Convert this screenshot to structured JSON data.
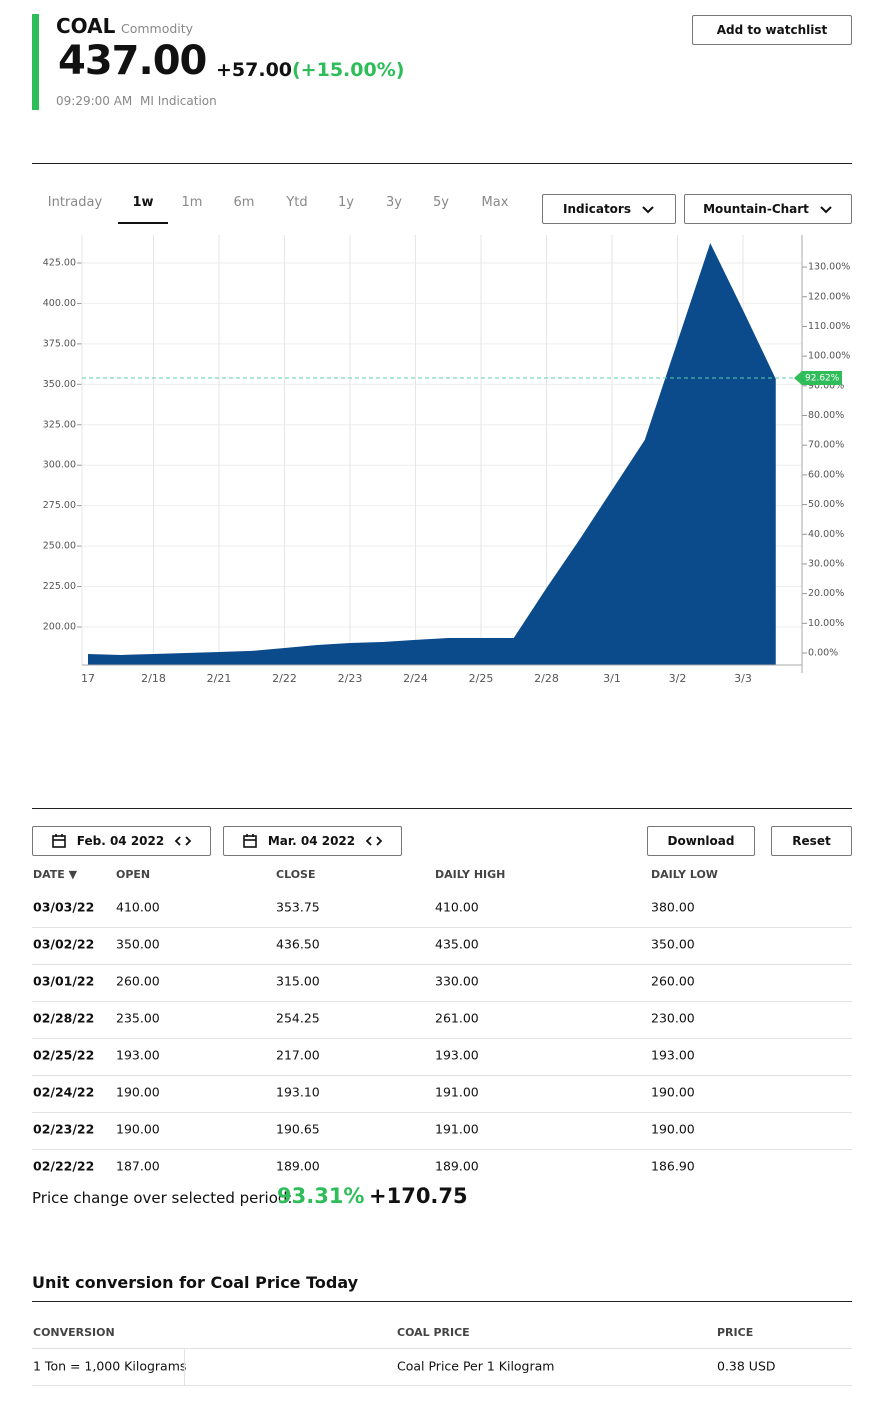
{
  "header": {
    "symbol": "COAL",
    "asset_class": "Commodity",
    "price": "437.00",
    "change": "+57.00",
    "change_percent": "(+15.00%)",
    "time": "09:29:00 AM",
    "source": "MI Indication",
    "watchlist_button": "Add to watchlist"
  },
  "tabs": {
    "items": [
      "Intraday",
      "1w",
      "1m",
      "6m",
      "Ytd",
      "1y",
      "3y",
      "5y",
      "Max"
    ],
    "active": 1
  },
  "chart_controls": {
    "indicators": "Indicators",
    "chart_type": "Mountain-Chart"
  },
  "chart_data": {
    "type": "area",
    "color": "#0b4a8b",
    "categories": [
      "17",
      null,
      "2/18",
      null,
      "2/21",
      null,
      "2/22",
      null,
      "2/23",
      null,
      "2/24",
      null,
      "2/25",
      null,
      "2/28",
      null,
      "3/1",
      null,
      "3/2",
      null,
      "3/3",
      null
    ],
    "values": [
      183.3,
      182.7,
      183.3,
      183.9,
      184.5,
      185.2,
      187,
      188.9,
      190.1,
      190.7,
      192,
      193.2,
      193.2,
      193.2,
      224.1,
      253.8,
      284.7,
      315.6,
      376.5,
      437.3,
      395.9,
      353.3
    ],
    "ylim": [
      176.5,
      442.3
    ],
    "yticks": [
      {
        "value": 200,
        "label": "200.00"
      },
      {
        "value": 225,
        "label": "225.00"
      },
      {
        "value": 250,
        "label": "250.00"
      },
      {
        "value": 275,
        "label": "275.00"
      },
      {
        "value": 300,
        "label": "300.00"
      },
      {
        "value": 325,
        "label": "325.00"
      },
      {
        "value": 350,
        "label": "350.00"
      },
      {
        "value": 375,
        "label": "375.00"
      },
      {
        "value": 400,
        "label": "400.00"
      },
      {
        "value": 425,
        "label": "425.00"
      }
    ],
    "y2lim": [
      -4.04,
      140.8
    ],
    "y2ticks": [
      {
        "value": 0,
        "label": "0.00%"
      },
      {
        "value": 10,
        "label": "10.00%"
      },
      {
        "value": 20,
        "label": "20.00%"
      },
      {
        "value": 30,
        "label": "30.00%"
      },
      {
        "value": 40,
        "label": "40.00%"
      },
      {
        "value": 50,
        "label": "50.00%"
      },
      {
        "value": 60,
        "label": "60.00%"
      },
      {
        "value": 70,
        "label": "70.00%"
      },
      {
        "value": 80,
        "label": "80.00%"
      },
      {
        "value": 90,
        "label": "90.00%"
      },
      {
        "value": 100,
        "label": "100.00%"
      },
      {
        "value": 110,
        "label": "110.00%"
      },
      {
        "value": 120,
        "label": "120.00%"
      },
      {
        "value": 130,
        "label": "130.00%"
      }
    ],
    "reference": {
      "value": 92.62,
      "label": "92.62%",
      "color": "#2ebd59"
    },
    "grid": true
  },
  "date_range": {
    "start": "Feb. 04 2022",
    "end": "Mar. 04 2022",
    "download": "Download",
    "reset": "Reset"
  },
  "table": {
    "headers": [
      "DATE ▼",
      "OPEN",
      "CLOSE",
      "DAILY HIGH",
      "DAILY LOW"
    ],
    "rows": [
      [
        "03/03/22",
        "410.00",
        "353.75",
        "410.00",
        "380.00"
      ],
      [
        "03/02/22",
        "350.00",
        "436.50",
        "435.00",
        "350.00"
      ],
      [
        "03/01/22",
        "260.00",
        "315.00",
        "330.00",
        "260.00"
      ],
      [
        "02/28/22",
        "235.00",
        "254.25",
        "261.00",
        "230.00"
      ],
      [
        "02/25/22",
        "193.00",
        "217.00",
        "193.00",
        "193.00"
      ],
      [
        "02/24/22",
        "190.00",
        "193.10",
        "191.00",
        "190.00"
      ],
      [
        "02/23/22",
        "190.00",
        "190.65",
        "191.00",
        "190.00"
      ],
      [
        "02/22/22",
        "187.00",
        "189.00",
        "189.00",
        "186.90"
      ]
    ]
  },
  "summary": {
    "label": "Price change over selected period:",
    "percent": "93.31%",
    "change": "+170.75"
  },
  "conversion": {
    "title": "Unit conversion for Coal Price Today",
    "headers": [
      "CONVERSION",
      "COAL PRICE",
      "PRICE"
    ],
    "rows": [
      [
        "1 Ton = 1,000 Kilograms",
        "Coal Price Per 1 Kilogram",
        "0.38 USD"
      ]
    ]
  }
}
